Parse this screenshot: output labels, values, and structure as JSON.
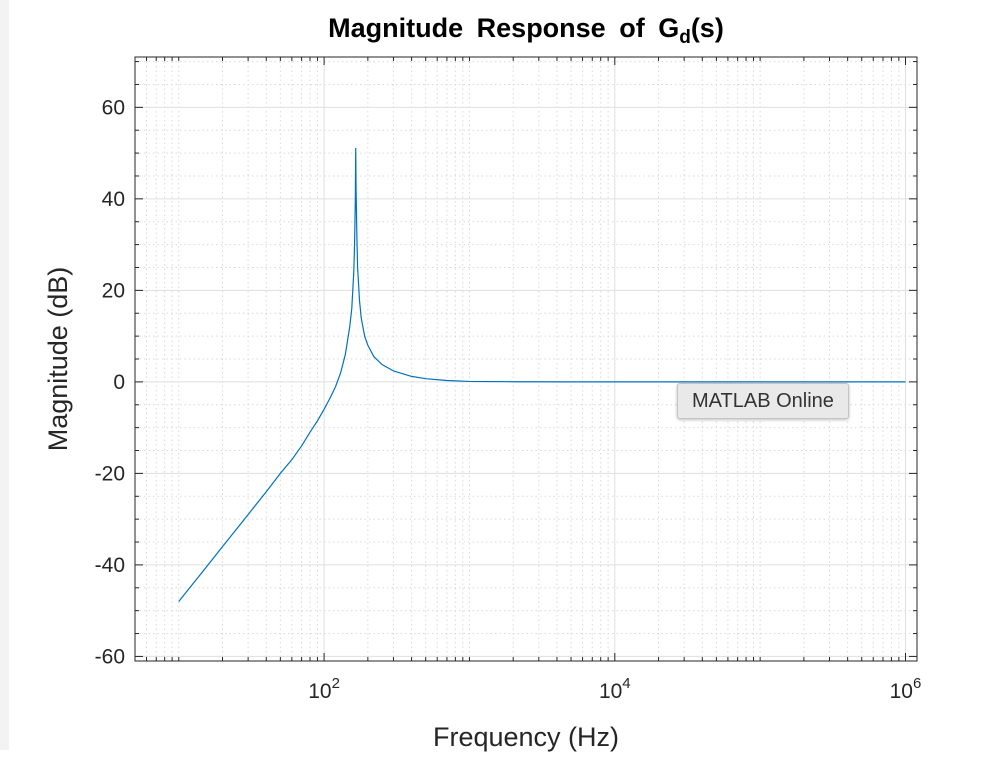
{
  "chart_data": {
    "type": "line",
    "title": {
      "prefix": "Magnitude Response of G",
      "subscript": "d",
      "suffix": "(s)"
    },
    "xlabel": "Frequency (Hz)",
    "ylabel": "Magnitude (dB)",
    "xscale": "log",
    "xlim": [
      5,
      1200000
    ],
    "ylim": [
      -61,
      71
    ],
    "xticks": [
      {
        "value": 100,
        "base": "10",
        "exp": "2"
      },
      {
        "value": 10000,
        "base": "10",
        "exp": "4"
      },
      {
        "value": 1000000,
        "base": "10",
        "exp": "6"
      }
    ],
    "yticks": [
      {
        "value": -60,
        "label": "-60"
      },
      {
        "value": -40,
        "label": "-40"
      },
      {
        "value": -20,
        "label": "-20"
      },
      {
        "value": 0,
        "label": "0"
      },
      {
        "value": 20,
        "label": "20"
      },
      {
        "value": 40,
        "label": "40"
      },
      {
        "value": 60,
        "label": "60"
      }
    ],
    "grid": true,
    "minor_grid": true,
    "line_color": "#0072BD",
    "series": [
      {
        "x": [
          10,
          15,
          20,
          30,
          40,
          50,
          60,
          70,
          80,
          90,
          100,
          110,
          120,
          130,
          140,
          150,
          155,
          160,
          162,
          164,
          165,
          166,
          168,
          170,
          175,
          180,
          190,
          200,
          220,
          250,
          300,
          400,
          500,
          700,
          1000,
          2000,
          5000,
          10000,
          100000,
          1000000
        ],
        "y": [
          -48,
          -41,
          -36,
          -29,
          -24,
          -20,
          -17,
          -14,
          -11,
          -8.5,
          -6,
          -3.5,
          -1,
          2,
          6,
          12,
          16,
          24,
          30,
          40,
          51,
          42,
          32,
          25,
          18,
          14,
          10,
          8,
          5.5,
          3.8,
          2.4,
          1.2,
          0.7,
          0.3,
          0.1,
          0.03,
          0,
          0,
          0,
          0
        ]
      }
    ]
  },
  "tooltip": {
    "label": "MATLAB Online"
  }
}
